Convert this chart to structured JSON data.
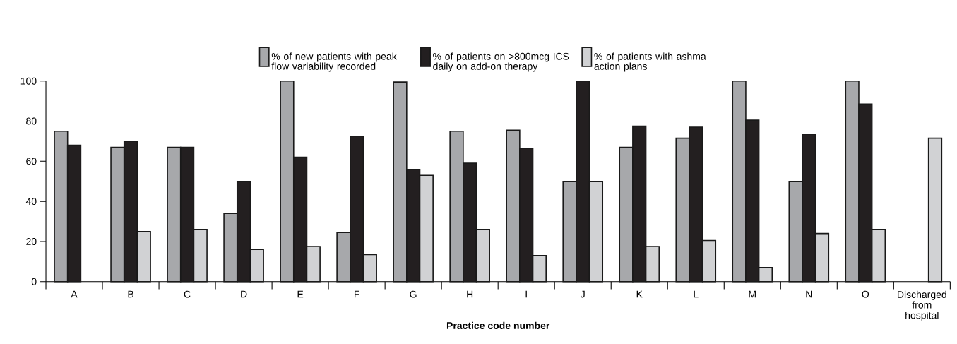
{
  "chart_data": {
    "type": "bar",
    "xlabel": "Practice code number",
    "categories": [
      "A",
      "B",
      "C",
      "D",
      "E",
      "F",
      "G",
      "H",
      "I",
      "J",
      "K",
      "L",
      "M",
      "N",
      "O",
      "Discharged from hospital"
    ],
    "series": [
      {
        "name": "% of new patients with peak flow variability recorded",
        "color": "#a7a8ab",
        "values": [
          75,
          67,
          67,
          34,
          100,
          24.5,
          99.5,
          75,
          75.5,
          50,
          67,
          71.5,
          100,
          50,
          100,
          null
        ]
      },
      {
        "name": "% of patients on >800mcg ICS daily on add-on therapy",
        "color": "#231f20",
        "values": [
          68,
          70,
          67,
          50,
          62,
          72.5,
          56,
          59,
          66.5,
          100,
          77.5,
          77,
          80.5,
          73.5,
          88.5,
          null
        ]
      },
      {
        "name": "% of patients with ashma action plans",
        "color": "#d1d2d4",
        "values": [
          null,
          25,
          26,
          16,
          17.5,
          13.5,
          53,
          26,
          13,
          50,
          17.5,
          20.5,
          7,
          24,
          26,
          71.5
        ]
      }
    ],
    "ylim": [
      0,
      100
    ],
    "yticks": [
      0,
      20,
      40,
      60,
      80,
      100
    ],
    "legend": "top"
  }
}
